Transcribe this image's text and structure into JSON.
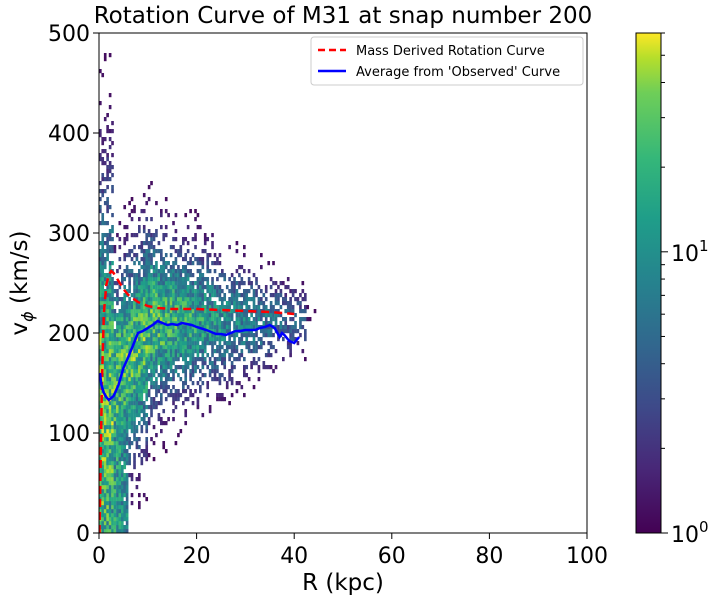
{
  "chart_data": {
    "type": "heatmap",
    "title": "Rotation Curve of M31 at snap number 200",
    "xlabel": "R (kpc)",
    "ylabel_main": "v",
    "ylabel_sub": "ϕ",
    "ylabel_units": " (km/s)",
    "xlim": [
      0,
      100
    ],
    "ylim": [
      0,
      500
    ],
    "xticks": [
      0,
      20,
      40,
      60,
      80,
      100
    ],
    "yticks": [
      0,
      100,
      200,
      300,
      400,
      500
    ],
    "colorbar": {
      "scale": "log",
      "colormap": "viridis",
      "range": [
        1,
        60
      ],
      "ticks": [
        {
          "base": "10",
          "exp": "0",
          "value": 1
        },
        {
          "base": "10",
          "exp": "1",
          "value": 10
        }
      ]
    },
    "legend_placement": "top-right",
    "series": [
      {
        "name": "Mass Derived Rotation Curve",
        "color": "#ff0000",
        "style": "dashed",
        "x": [
          0.1,
          0.3,
          0.6,
          1.0,
          1.5,
          2.0,
          2.5,
          3.0,
          4.0,
          5.0,
          6.0,
          8.0,
          10.0,
          12.0,
          15.0,
          20.0,
          25.0,
          30.0,
          35.0,
          40.0
        ],
        "y": [
          0,
          60,
          150,
          220,
          248,
          258,
          262,
          260,
          252,
          244,
          238,
          231,
          227,
          225,
          224,
          224,
          223,
          222,
          221,
          219
        ]
      },
      {
        "name": "Average from 'Observed' Curve",
        "color": "#0000ff",
        "style": "solid",
        "x": [
          0.2,
          0.5,
          1.0,
          1.5,
          2.0,
          3.0,
          4.0,
          5.0,
          6.0,
          7.0,
          8.0,
          9.0,
          10.0,
          11.0,
          12.0,
          13.0,
          14.0,
          15.0,
          16.0,
          17.0,
          18.0,
          19.0,
          20.0,
          22.0,
          24.0,
          25.0,
          26.0,
          27.0,
          28.0,
          29.0,
          30.0,
          31.0,
          32.0,
          33.0,
          34.0,
          35.0,
          36.0,
          37.0,
          37.5,
          38.0,
          39.0,
          40.0,
          41.0
        ],
        "y": [
          160,
          148,
          140,
          136,
          133,
          137,
          148,
          165,
          176,
          188,
          200,
          202,
          205,
          208,
          212,
          210,
          208,
          209,
          208,
          210,
          209,
          208,
          206,
          203,
          199,
          199,
          198,
          200,
          202,
          202,
          203,
          203,
          203,
          205,
          206,
          208,
          205,
          196,
          200,
          198,
          192,
          190,
          196
        ]
      }
    ]
  }
}
